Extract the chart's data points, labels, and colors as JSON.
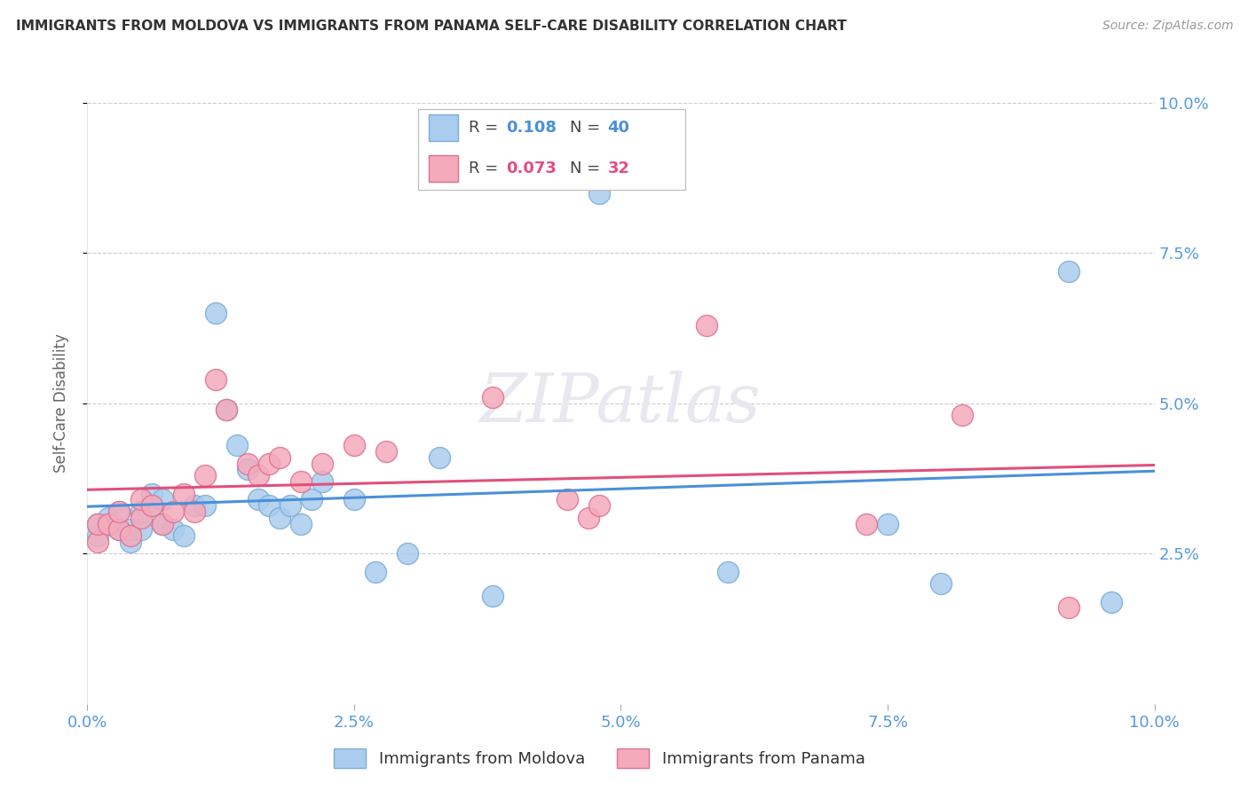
{
  "title": "IMMIGRANTS FROM MOLDOVA VS IMMIGRANTS FROM PANAMA SELF-CARE DISABILITY CORRELATION CHART",
  "source": "Source: ZipAtlas.com",
  "ylabel": "Self-Care Disability",
  "xlim": [
    0.0,
    0.1
  ],
  "ylim": [
    0.0,
    0.1
  ],
  "xtick_vals": [
    0.0,
    0.025,
    0.05,
    0.075,
    0.1
  ],
  "xtick_labels": [
    "0.0%",
    "2.5%",
    "5.0%",
    "7.5%",
    "10.0%"
  ],
  "ytick_vals": [
    0.025,
    0.05,
    0.075,
    0.1
  ],
  "ytick_labels": [
    "2.5%",
    "5.0%",
    "7.5%",
    "10.0%"
  ],
  "moldova_color": "#aaccee",
  "panama_color": "#f4aabb",
  "moldova_edge": "#7aadd5",
  "panama_edge": "#e07090",
  "trendline_moldova": "#4a90d9",
  "trendline_panama": "#e0507a",
  "legend_R_moldova": "0.108",
  "legend_N_moldova": "40",
  "legend_R_panama": "0.073",
  "legend_N_panama": "32",
  "moldova_label": "Immigrants from Moldova",
  "panama_label": "Immigrants from Panama",
  "watermark": "ZIPatlas",
  "background_color": "#ffffff",
  "grid_color": "#cccccc",
  "moldova_x": [
    0.001,
    0.001,
    0.002,
    0.002,
    0.003,
    0.003,
    0.004,
    0.004,
    0.005,
    0.005,
    0.006,
    0.006,
    0.007,
    0.007,
    0.008,
    0.009,
    0.01,
    0.011,
    0.012,
    0.013,
    0.014,
    0.015,
    0.016,
    0.017,
    0.018,
    0.019,
    0.02,
    0.021,
    0.022,
    0.025,
    0.027,
    0.03,
    0.033,
    0.038,
    0.048,
    0.06,
    0.075,
    0.08,
    0.092,
    0.096
  ],
  "moldova_y": [
    0.028,
    0.03,
    0.03,
    0.031,
    0.029,
    0.032,
    0.027,
    0.029,
    0.029,
    0.032,
    0.033,
    0.035,
    0.03,
    0.034,
    0.029,
    0.028,
    0.033,
    0.033,
    0.065,
    0.049,
    0.043,
    0.039,
    0.034,
    0.033,
    0.031,
    0.033,
    0.03,
    0.034,
    0.037,
    0.034,
    0.022,
    0.025,
    0.041,
    0.018,
    0.085,
    0.022,
    0.03,
    0.02,
    0.072,
    0.017
  ],
  "panama_x": [
    0.001,
    0.001,
    0.002,
    0.003,
    0.003,
    0.004,
    0.005,
    0.005,
    0.006,
    0.007,
    0.008,
    0.009,
    0.01,
    0.011,
    0.012,
    0.013,
    0.015,
    0.016,
    0.017,
    0.018,
    0.02,
    0.022,
    0.025,
    0.028,
    0.038,
    0.045,
    0.047,
    0.048,
    0.058,
    0.073,
    0.082,
    0.092
  ],
  "panama_y": [
    0.027,
    0.03,
    0.03,
    0.029,
    0.032,
    0.028,
    0.031,
    0.034,
    0.033,
    0.03,
    0.032,
    0.035,
    0.032,
    0.038,
    0.054,
    0.049,
    0.04,
    0.038,
    0.04,
    0.041,
    0.037,
    0.04,
    0.043,
    0.042,
    0.051,
    0.034,
    0.031,
    0.033,
    0.063,
    0.03,
    0.048,
    0.016
  ]
}
